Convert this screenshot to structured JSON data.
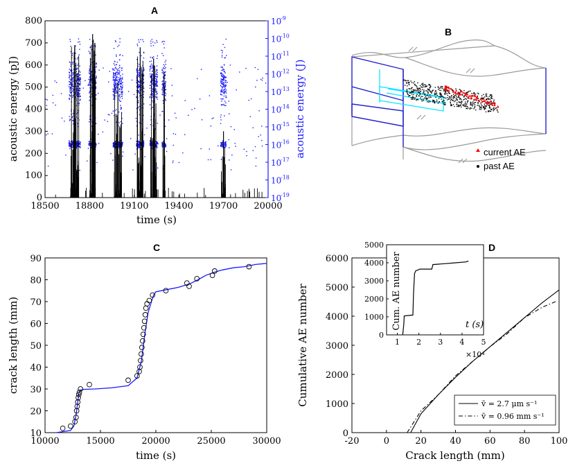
{
  "colors": {
    "blue": "#1a1aff",
    "black": "#000000",
    "red": "#ff0000",
    "cyan": "#00e5ff",
    "gray": "#9a9a9a"
  },
  "chart_data": [
    {
      "panel": "A",
      "type": "bar+scatter",
      "xlabel": "time (s)",
      "ylabel": "acoustic energy (pJ)",
      "ylabel_right": "acoustic energy (J)",
      "xlim": [
        18500,
        20000
      ],
      "ylim": [
        0,
        800
      ],
      "ylim_right_log10": [
        -19,
        -9
      ],
      "xticks": [
        "18500",
        "18800",
        "19100",
        "19400",
        "19700",
        "20000"
      ],
      "yticks": [
        "0",
        "100",
        "200",
        "300",
        "400",
        "500",
        "600",
        "700",
        "800"
      ],
      "yticks_right": [
        "10",
        "10",
        "10",
        "10",
        "10",
        "10",
        "10",
        "10",
        "10",
        "10",
        "10"
      ],
      "yticks_right_exp": [
        "-19",
        "-18",
        "-17",
        "-16",
        "-15",
        "-14",
        "-13",
        "-12",
        "-11",
        "-10",
        "-9"
      ],
      "bursts": [
        {
          "center": 18700,
          "width": 60,
          "peak": 690
        },
        {
          "center": 18820,
          "width": 40,
          "peak": 740
        },
        {
          "center": 18990,
          "width": 50,
          "peak": 520
        },
        {
          "center": 19140,
          "width": 40,
          "peak": 680
        },
        {
          "center": 19230,
          "width": 40,
          "peak": 630
        },
        {
          "center": 19300,
          "width": 20,
          "peak": 570
        },
        {
          "center": 19700,
          "width": 30,
          "peak": 300
        }
      ]
    },
    {
      "panel": "B",
      "type": "3d-scatter",
      "legend": [
        "current AE",
        "past AE"
      ]
    },
    {
      "panel": "C",
      "type": "line+scatter",
      "xlabel": "time (s)",
      "ylabel": "crack length (mm)",
      "xlim": [
        10000,
        30000
      ],
      "ylim": [
        10,
        90
      ],
      "xticks": [
        "10000",
        "15000",
        "20000",
        "25000",
        "30000"
      ],
      "yticks": [
        "10",
        "20",
        "30",
        "40",
        "50",
        "60",
        "70",
        "80",
        "90"
      ],
      "line": {
        "x": [
          11000,
          12300,
          12600,
          12800,
          12950,
          13050,
          13200,
          13500,
          14500,
          16000,
          17500,
          18300,
          18700,
          19000,
          19300,
          19600,
          19800,
          20000,
          21000,
          22000,
          23000,
          23800,
          24500,
          25300,
          26000,
          27000,
          28000,
          29000,
          30000
        ],
        "y": [
          10,
          11,
          13,
          18,
          24,
          28,
          29.5,
          29.8,
          30,
          30.5,
          31.5,
          35,
          43,
          55,
          65,
          70,
          73,
          74.5,
          75.5,
          76.5,
          78,
          80,
          82,
          83.5,
          84.5,
          85.5,
          86,
          87,
          87.5
        ]
      },
      "points": {
        "x": [
          11600,
          12300,
          12700,
          12800,
          12850,
          12900,
          12950,
          13000,
          13050,
          13100,
          13200,
          14000,
          17500,
          18300,
          18500,
          18560,
          18620,
          18680,
          18740,
          18800,
          18860,
          18920,
          18980,
          19040,
          19100,
          19200,
          19400,
          19700,
          20900,
          22800,
          23000,
          23700,
          25100,
          25300,
          28400
        ],
        "y": [
          12,
          13,
          15,
          17,
          20,
          22,
          24,
          26,
          27.5,
          28.5,
          30,
          32,
          34,
          36,
          38,
          40,
          43,
          46,
          49,
          52,
          55,
          58,
          61,
          64,
          67,
          69,
          70.5,
          73,
          75,
          78.5,
          77,
          80.5,
          82,
          84,
          86
        ]
      }
    },
    {
      "panel": "D",
      "type": "line",
      "xlabel": "Crack length (mm)",
      "ylabel": "Cumulative AE number",
      "xlim": [
        -20,
        100
      ],
      "ylim": [
        0,
        6000
      ],
      "xticks": [
        "-20",
        "0",
        "20",
        "40",
        "60",
        "80",
        "100"
      ],
      "yticks": [
        "0",
        "1000",
        "2000",
        "3000",
        "4000",
        "5000",
        "6000"
      ],
      "series": [
        {
          "name": "v̄ = 2.7 μm s⁻¹",
          "style": "solid",
          "x": [
            14,
            20,
            30,
            40,
            50,
            60,
            70,
            80,
            90,
            100
          ],
          "y": [
            0,
            650,
            1300,
            1900,
            2450,
            2950,
            3450,
            3950,
            4450,
            4900
          ]
        },
        {
          "name": "v̄ = 0.96 mm s⁻¹",
          "style": "dashdot",
          "x": [
            12,
            20,
            30,
            40,
            50,
            60,
            70,
            80,
            90,
            98
          ],
          "y": [
            0,
            750,
            1300,
            1950,
            2450,
            2950,
            3400,
            3950,
            4300,
            4500
          ]
        }
      ],
      "inset": {
        "xlabel": "t (s)",
        "ylabel": "Cum. AE number",
        "multiplier": "×10⁴",
        "xlim": [
          0.5,
          5
        ],
        "ylim": [
          0,
          5000
        ],
        "xticks": [
          "1",
          "2",
          "3",
          "4",
          "5"
        ],
        "yticks": [
          "0",
          "1000",
          "2000",
          "3000",
          "4000",
          "5000"
        ],
        "x": [
          1.25,
          1.3,
          1.32,
          1.72,
          1.75,
          1.8,
          1.85,
          1.95,
          2.05,
          2.6,
          2.65,
          3.2,
          3.7,
          4.2,
          4.3
        ],
        "y": [
          0,
          600,
          1050,
          1100,
          2300,
          3400,
          3550,
          3600,
          3650,
          3650,
          3900,
          3950,
          4000,
          4050,
          4100
        ]
      }
    }
  ],
  "panel_titles": {
    "a": "A",
    "b": "B",
    "c": "C",
    "d": "D"
  },
  "panelB": {
    "current_label": "current AE",
    "past_label": "past AE"
  }
}
